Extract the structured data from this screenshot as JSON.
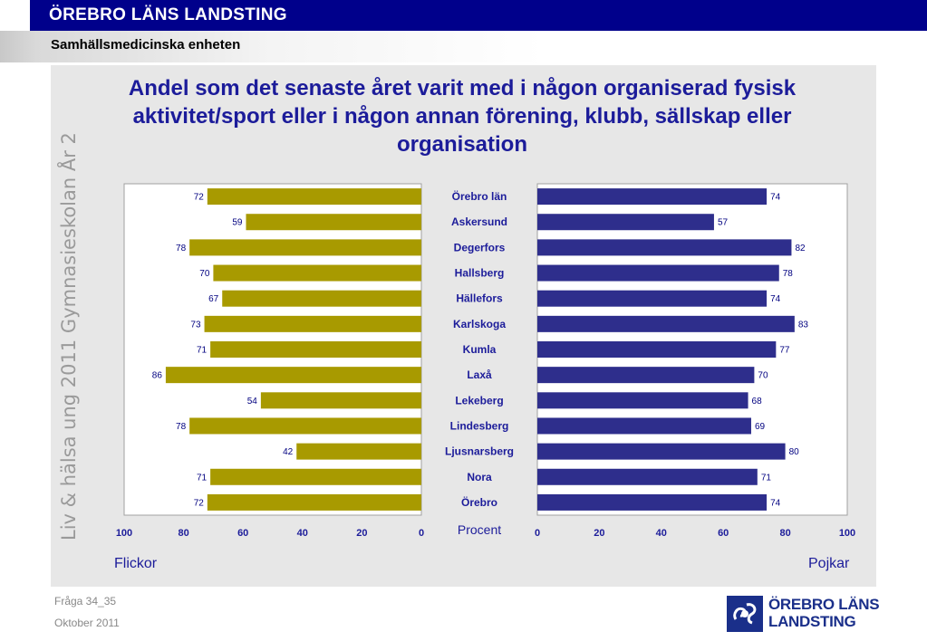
{
  "header": {
    "title": "ÖREBRO LÄNS LANDSTING",
    "subtitle": "Samhällsmedicinska enheten"
  },
  "side_text": "Liv & hälsa ung 2011 Gymnasieskolan År 2",
  "labels": {
    "left_group": "Flickor",
    "right_group": "Pojkar",
    "x_unit": "Procent"
  },
  "footer": {
    "question": "Fråga 34_35",
    "date": "Oktober 2011"
  },
  "logo": {
    "line1": "ÖREBRO LÄNS",
    "line2": "LANDSTING"
  },
  "colors": {
    "flickor": "#a89a00",
    "pojkar": "#2e2e8c",
    "title": "#1c1c9a",
    "header_bg": "#00008b"
  },
  "chart_data": {
    "type": "bar",
    "orientation": "horizontal-butterfly",
    "title": "Andel som det senaste året varit med i någon organiserad fysisk aktivitet/sport eller i någon annan förening, klubb, sällskap eller organisation",
    "xlabel": "Procent",
    "xlim": [
      0,
      100
    ],
    "ticks": [
      0,
      20,
      40,
      60,
      80,
      100
    ],
    "grid": false,
    "categories": [
      "Örebro län",
      "Askersund",
      "Degerfors",
      "Hallsberg",
      "Hällefors",
      "Karlskoga",
      "Kumla",
      "Laxå",
      "Lekeberg",
      "Lindesberg",
      "Ljusnarsberg",
      "Nora",
      "Örebro"
    ],
    "series": [
      {
        "name": "Flickor",
        "side": "left",
        "values": [
          72,
          59,
          78,
          70,
          67,
          73,
          71,
          86,
          54,
          78,
          42,
          71,
          72
        ]
      },
      {
        "name": "Pojkar",
        "side": "right",
        "values": [
          74,
          57,
          82,
          78,
          74,
          83,
          77,
          70,
          68,
          69,
          80,
          71,
          74
        ]
      }
    ]
  }
}
